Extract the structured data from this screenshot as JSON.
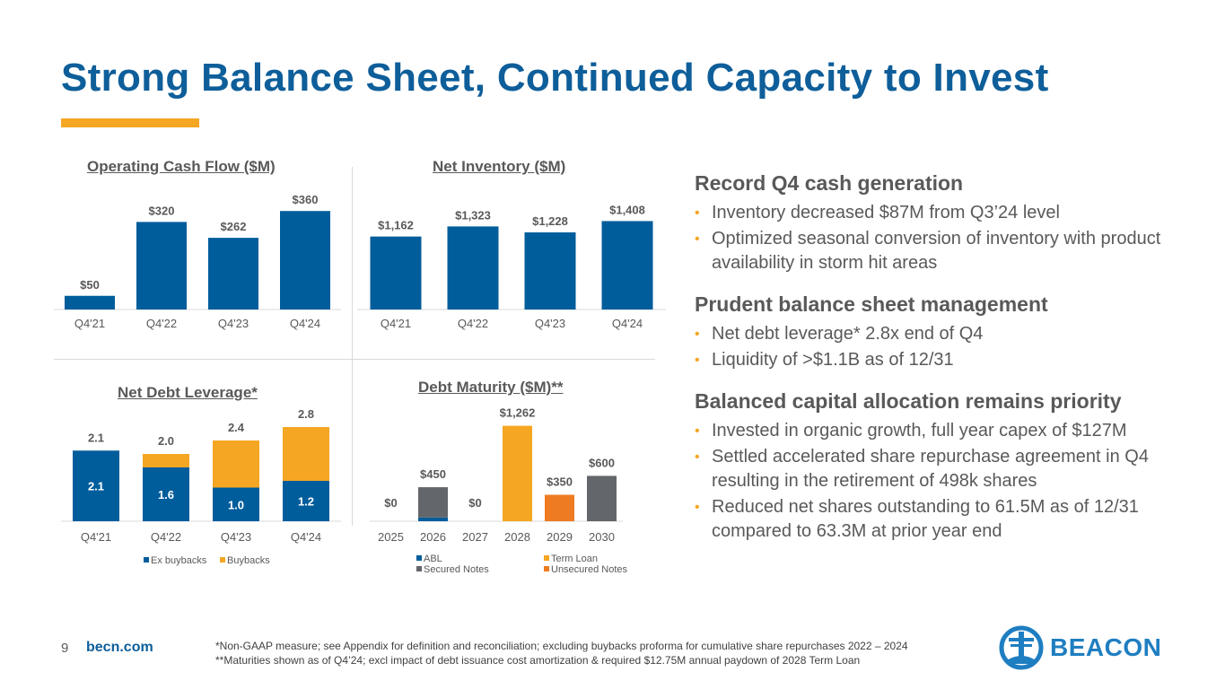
{
  "title": "Strong Balance Sheet, Continued Capacity to Invest",
  "colors": {
    "blue": "#005d9c",
    "orange": "#f5a623",
    "dark_orange": "#ee7b22",
    "gray": "#63666a",
    "title_blue": "#0e5e9a",
    "logo_blue": "#1f7ec1"
  },
  "chart_data": [
    {
      "id": "ocf",
      "type": "bar",
      "title": "Operating Cash Flow ($M)",
      "categories": [
        "Q4'21",
        "Q4'22",
        "Q4'23",
        "Q4'24"
      ],
      "values": [
        50,
        320,
        262,
        360
      ],
      "labels": [
        "$50",
        "$320",
        "$262",
        "$360"
      ],
      "ylim": [
        0,
        400
      ]
    },
    {
      "id": "inv",
      "type": "bar",
      "title": "Net Inventory ($M)",
      "categories": [
        "Q4'21",
        "Q4'22",
        "Q4'23",
        "Q4'24"
      ],
      "values": [
        1162,
        1323,
        1228,
        1408
      ],
      "labels": [
        "$1,162",
        "$1,323",
        "$1,228",
        "$1,408"
      ],
      "ylim": [
        0,
        1600
      ]
    },
    {
      "id": "lev",
      "type": "bar",
      "stacked": true,
      "title": "Net Debt Leverage*",
      "categories": [
        "Q4'21",
        "Q4'22",
        "Q4'23",
        "Q4'24"
      ],
      "series": [
        {
          "name": "Ex buybacks",
          "values": [
            2.1,
            1.6,
            1.0,
            1.2
          ],
          "labels": [
            "2.1",
            "1.6",
            "1.0",
            "1.2"
          ]
        },
        {
          "name": "Buybacks",
          "values": [
            0.0,
            0.4,
            1.4,
            1.6
          ]
        }
      ],
      "totals": [
        "2.1",
        "2.0",
        "2.4",
        "2.8"
      ],
      "ylim": [
        0,
        3.2
      ]
    },
    {
      "id": "debt",
      "type": "bar",
      "stacked": true,
      "title": "Debt Maturity ($M)**",
      "categories": [
        "2025",
        "2026",
        "2027",
        "2028",
        "2029",
        "2030"
      ],
      "series": [
        {
          "name": "ABL",
          "values": [
            0,
            50,
            0,
            0,
            0,
            0
          ]
        },
        {
          "name": "Term Loan",
          "values": [
            0,
            0,
            0,
            1262,
            0,
            0
          ]
        },
        {
          "name": "Secured Notes",
          "values": [
            0,
            400,
            0,
            0,
            0,
            600
          ]
        },
        {
          "name": "Unsecured Notes",
          "values": [
            0,
            0,
            0,
            0,
            350,
            0
          ]
        }
      ],
      "totals": [
        "$0",
        "$450",
        "$0",
        "$1,262",
        "$350",
        "$600"
      ],
      "ylim": [
        0,
        1400
      ]
    }
  ],
  "sections": [
    {
      "heading": "Record Q4 cash generation",
      "bullets": [
        "Inventory decreased $87M from Q3’24 level",
        "Optimized seasonal conversion of inventory with product availability in storm hit areas"
      ]
    },
    {
      "heading": "Prudent balance sheet management",
      "bullets": [
        "Net debt leverage* 2.8x end of Q4",
        "Liquidity of >$1.1B as of 12/31"
      ]
    },
    {
      "heading": "Balanced capital allocation remains priority",
      "bullets": [
        "Invested in organic growth, full year capex of $127M",
        "Settled accelerated share repurchase agreement in Q4 resulting in the retirement of 498k shares",
        "Reduced net shares outstanding to 61.5M as of 12/31 compared to 63.3M at prior year end"
      ]
    }
  ],
  "footer": {
    "page": "9",
    "site": "becn.com",
    "note1": "*Non-GAAP measure; see Appendix for definition and reconciliation; excluding buybacks proforma for cumulative share repurchases 2022 – 2024",
    "note2": "**Maturities shown as of Q4’24; excl impact of debt issuance cost amortization & required $12.75M annual paydown of 2028 Term Loan",
    "logo_text": "BEACON"
  }
}
